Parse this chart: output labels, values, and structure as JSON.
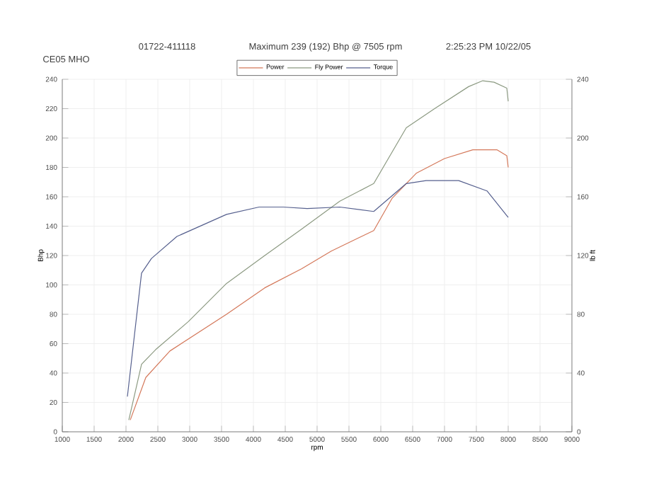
{
  "chart_data": {
    "type": "line",
    "title": "Maximum 239 (192) Bhp @ 7505 rpm",
    "annotations": [
      "01722-411118",
      "2:25:23 PM 10/22/05",
      "CE05 MHO"
    ],
    "xlabel": "rpm",
    "ylabel": "Bhp",
    "y2label": "lb ft",
    "xlim": [
      1000,
      9000
    ],
    "xticks": [
      1000,
      1500,
      2000,
      2500,
      3000,
      3500,
      4000,
      4500,
      5000,
      5500,
      6000,
      6500,
      7000,
      7500,
      8000,
      8500,
      9000
    ],
    "ylim": [
      0,
      240
    ],
    "yticks": [
      0,
      20,
      40,
      60,
      80,
      100,
      120,
      140,
      160,
      180,
      200,
      220,
      240
    ],
    "y2lim": [
      0,
      240
    ],
    "y2ticks": [
      0,
      40,
      80,
      120,
      160,
      200,
      240
    ],
    "grid": true,
    "legend": "top",
    "marker": "none",
    "line_style": "solid",
    "series": [
      {
        "name": "Power",
        "color": "#d4785a",
        "x": [
          2067,
          2311,
          2689,
          3578,
          4178,
          4756,
          5222,
          5889,
          6178,
          6556,
          7000,
          7444,
          7822,
          7978,
          8000
        ],
        "values": [
          8,
          37,
          55,
          80,
          98,
          111,
          123,
          137,
          159,
          176,
          186,
          192,
          192,
          188,
          180
        ]
      },
      {
        "name": "Fly Power",
        "color": "#8c9a82",
        "x": [
          2044,
          2244,
          2467,
          2978,
          3578,
          4178,
          4756,
          5356,
          5889,
          6400,
          6844,
          7378,
          7600,
          7778,
          7978,
          8000
        ],
        "values": [
          8,
          46,
          56,
          75,
          101,
          120,
          138,
          157,
          169,
          207,
          220,
          235,
          239,
          238,
          234,
          225
        ]
      },
      {
        "name": "Torque",
        "color": "#56608e",
        "axis": "y2",
        "x": [
          2022,
          2244,
          2400,
          2800,
          3578,
          4089,
          4467,
          4844,
          5356,
          5889,
          6400,
          6711,
          7222,
          7667,
          8000
        ],
        "values": [
          24,
          108,
          118,
          133,
          148,
          153,
          153,
          152,
          153,
          150,
          169,
          171,
          171,
          164,
          146
        ]
      }
    ]
  }
}
